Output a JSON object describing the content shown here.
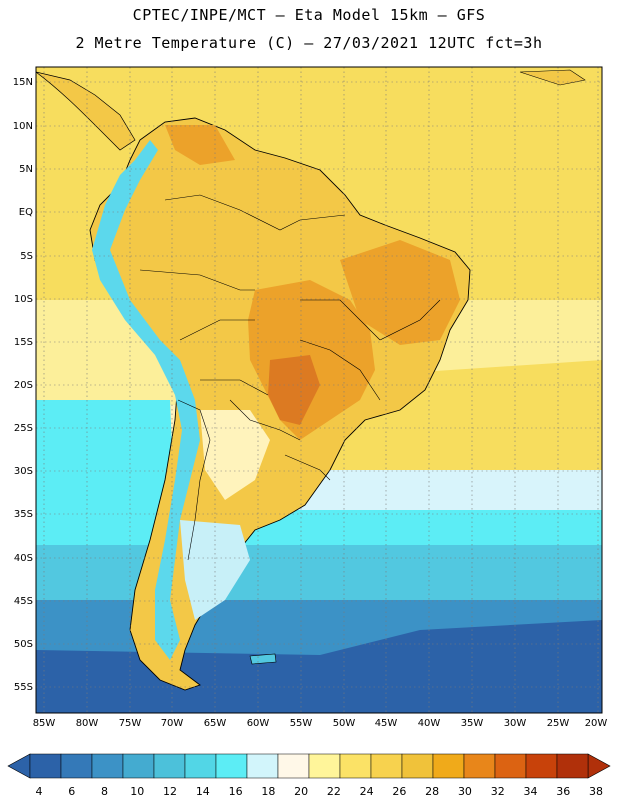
{
  "header": {
    "line1": "CPTEC/INPE/MCT –  Eta Model 15km – GFS",
    "line2": "2 Metre Temperature (C) – 27/03/2021 12UTC fct=3h"
  },
  "lat_labels": [
    "15N",
    "10N",
    "5N",
    "EQ",
    "5S",
    "10S",
    "15S",
    "20S",
    "25S",
    "30S",
    "35S",
    "40S",
    "45S",
    "50S",
    "55S"
  ],
  "lon_labels": [
    "85W",
    "80W",
    "75W",
    "70W",
    "65W",
    "60W",
    "55W",
    "50W",
    "45W",
    "40W",
    "35W",
    "30W",
    "25W",
    "20W"
  ],
  "colorbar": {
    "values": [
      "4",
      "6",
      "8",
      "10",
      "12",
      "14",
      "16",
      "18",
      "20",
      "22",
      "24",
      "26",
      "28",
      "30",
      "32",
      "34",
      "36",
      "38"
    ],
    "colors": [
      "#2c62a8",
      "#3479b8",
      "#3c92c6",
      "#44abd0",
      "#4cc1da",
      "#52d6e6",
      "#5cedf5",
      "#d2f5fb",
      "#fff8e8",
      "#fff59a",
      "#fbe266",
      "#f7d24e",
      "#f0c23a",
      "#f0aa1a",
      "#e8861a",
      "#dc6312",
      "#c8420a",
      "#b0300a"
    ]
  },
  "map_colors": {
    "ocean_north": "#f7dd5e",
    "ocean_mid": "#fcf2b0",
    "ocean_cool": "#d8f4fb",
    "ocean_cyan": "#5cedf5",
    "ocean_lightblue": "#52c8e0",
    "ocean_blue": "#3c92c6",
    "ocean_dark": "#2c62a8",
    "land_warm": "#f3c847",
    "land_hot": "#eca22a",
    "land_hottest": "#dc7a22",
    "andes": "#5cd8ec",
    "patagonia": "#c8f0f8"
  }
}
